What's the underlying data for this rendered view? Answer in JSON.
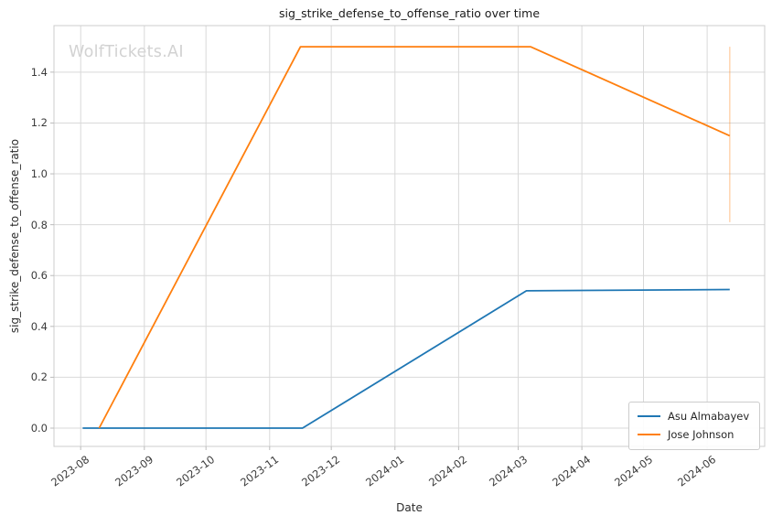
{
  "watermark": "WolfTickets.AI",
  "chart_data": {
    "type": "line",
    "title": "sig_strike_defense_to_offense_ratio over time",
    "xlabel": "Date",
    "ylabel": "sig_strike_defense_to_offense_ratio",
    "x_tick_labels": [
      "2023-08",
      "2023-09",
      "2023-10",
      "2023-11",
      "2023-12",
      "2024-01",
      "2024-02",
      "2024-03",
      "2024-04",
      "2024-05",
      "2024-06"
    ],
    "y_ticks": [
      0.0,
      0.2,
      0.4,
      0.6,
      0.8,
      1.0,
      1.2,
      1.4
    ],
    "y_tick_labels": [
      "0.0",
      "0.2",
      "0.4",
      "0.6",
      "0.8",
      "1.0",
      "1.2",
      "1.4"
    ],
    "xlim_dates": [
      "2023-07-19",
      "2024-06-29"
    ],
    "ylim": [
      -0.072,
      1.583
    ],
    "grid": true,
    "legend_position": "lower right",
    "series": [
      {
        "name": "Asu Almabayev",
        "color": "#1f77b4",
        "points": [
          {
            "date": "2023-08-02",
            "value": 0.0
          },
          {
            "date": "2023-11-17",
            "value": 0.0
          },
          {
            "date": "2024-03-05",
            "value": 0.54
          },
          {
            "date": "2024-06-12",
            "value": 0.545
          }
        ]
      },
      {
        "name": "Jose Johnson",
        "color": "#ff7f0e",
        "points": [
          {
            "date": "2023-08-10",
            "value": 0.0
          },
          {
            "date": "2023-11-16",
            "value": 1.5
          },
          {
            "date": "2024-03-07",
            "value": 1.5
          },
          {
            "date": "2024-06-12",
            "value": 1.15
          }
        ],
        "error_bar": {
          "date": "2024-06-12",
          "low": 0.81,
          "high": 1.5
        }
      }
    ]
  },
  "colors": {
    "grid": "#d9d9d9",
    "spine": "#cccccc",
    "tick_mark": "#bbbbbb",
    "error_bar": "rgba(255,127,14,0.35)"
  }
}
